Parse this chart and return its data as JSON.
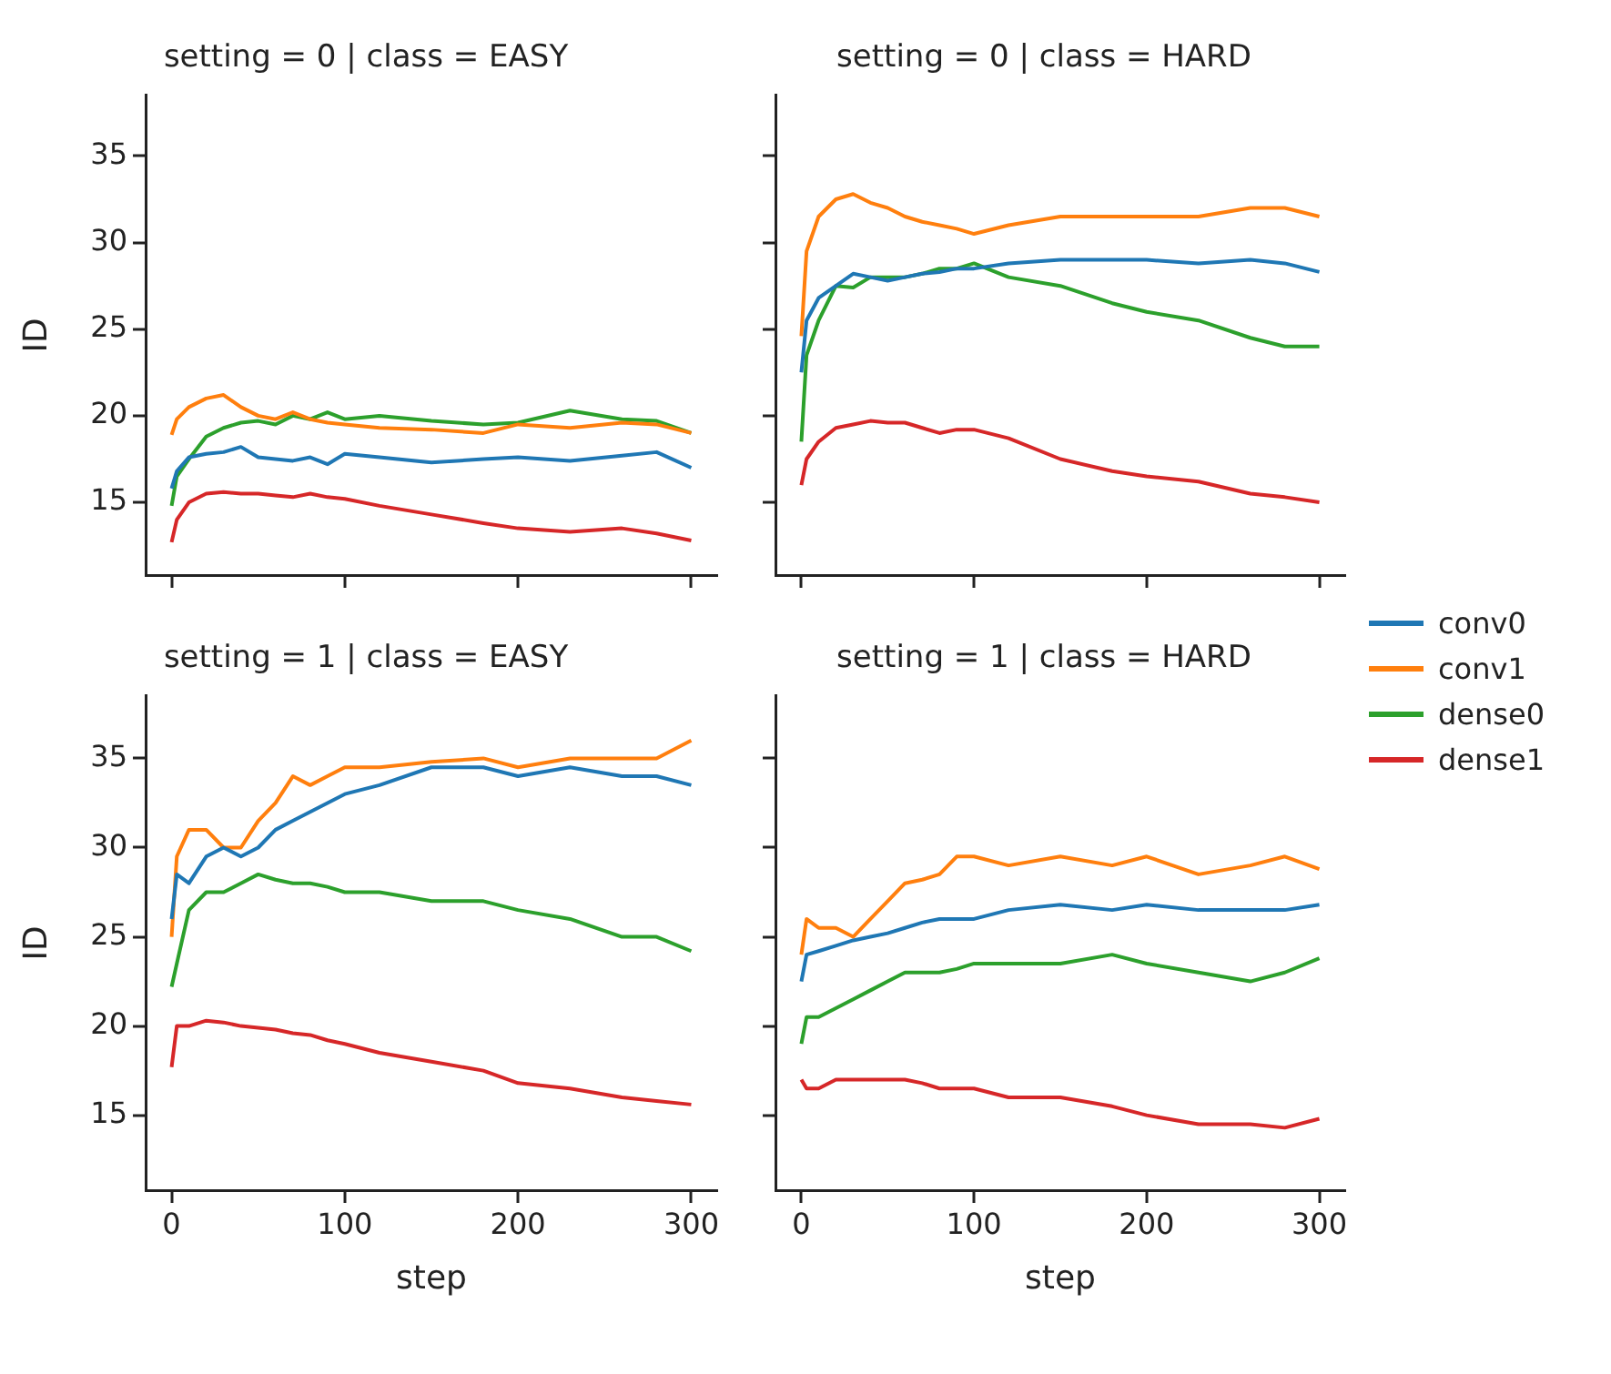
{
  "chart_data": [
    {
      "type": "line",
      "title": "setting = 0 | class = EASY",
      "ylabel": "ID",
      "x": [
        0,
        3,
        10,
        20,
        30,
        40,
        50,
        60,
        70,
        80,
        90,
        100,
        120,
        150,
        180,
        200,
        230,
        260,
        280,
        300
      ],
      "xlim": [
        -15,
        315
      ],
      "xticks": [
        0,
        100,
        200,
        300
      ],
      "ylim": [
        10.8,
        38.5
      ],
      "yticks": [
        15,
        20,
        25,
        30,
        35
      ],
      "tick_labels": "y",
      "grid": false,
      "legend": "right",
      "series": [
        {
          "name": "conv0",
          "color": "#1f77b4",
          "values": [
            15.8,
            16.8,
            17.6,
            17.8,
            17.9,
            18.2,
            17.6,
            17.5,
            17.4,
            17.6,
            17.2,
            17.8,
            17.6,
            17.3,
            17.5,
            17.6,
            17.4,
            17.7,
            17.9,
            17.0
          ]
        },
        {
          "name": "conv1",
          "color": "#ff7f0e",
          "values": [
            18.9,
            19.8,
            20.5,
            21.0,
            21.2,
            20.5,
            20.0,
            19.8,
            20.2,
            19.8,
            19.6,
            19.5,
            19.3,
            19.2,
            19.0,
            19.5,
            19.3,
            19.6,
            19.5,
            19.0
          ]
        },
        {
          "name": "dense0",
          "color": "#2ca02c",
          "values": [
            14.8,
            16.5,
            17.5,
            18.8,
            19.3,
            19.6,
            19.7,
            19.5,
            20.0,
            19.8,
            20.2,
            19.8,
            20.0,
            19.7,
            19.5,
            19.6,
            20.3,
            19.8,
            19.7,
            19.0
          ]
        },
        {
          "name": "dense1",
          "color": "#d62728",
          "values": [
            12.7,
            14.0,
            15.0,
            15.5,
            15.6,
            15.5,
            15.5,
            15.4,
            15.3,
            15.5,
            15.3,
            15.2,
            14.8,
            14.3,
            13.8,
            13.5,
            13.3,
            13.5,
            13.2,
            12.8
          ]
        }
      ]
    },
    {
      "type": "line",
      "title": "setting = 0 | class = HARD",
      "x": [
        0,
        3,
        10,
        20,
        30,
        40,
        50,
        60,
        70,
        80,
        90,
        100,
        120,
        150,
        180,
        200,
        230,
        260,
        280,
        300
      ],
      "xlim": [
        -15,
        315
      ],
      "xticks": [
        0,
        100,
        200,
        300
      ],
      "ylim": [
        10.8,
        38.5
      ],
      "yticks": [
        15,
        20,
        25,
        30,
        35
      ],
      "tick_labels": false,
      "grid": false,
      "series": [
        {
          "name": "conv0",
          "color": "#1f77b4",
          "values": [
            22.5,
            25.5,
            26.8,
            27.5,
            28.2,
            28.0,
            27.8,
            28.0,
            28.2,
            28.3,
            28.5,
            28.5,
            28.8,
            29.0,
            29.0,
            29.0,
            28.8,
            29.0,
            28.8,
            28.3
          ]
        },
        {
          "name": "conv1",
          "color": "#ff7f0e",
          "values": [
            24.6,
            29.5,
            31.5,
            32.5,
            32.8,
            32.3,
            32.0,
            31.5,
            31.2,
            31.0,
            30.8,
            30.5,
            31.0,
            31.5,
            31.5,
            31.5,
            31.5,
            32.0,
            32.0,
            31.5
          ]
        },
        {
          "name": "dense0",
          "color": "#2ca02c",
          "values": [
            18.5,
            23.5,
            25.5,
            27.5,
            27.4,
            28.0,
            28.0,
            28.0,
            28.2,
            28.5,
            28.5,
            28.8,
            28.0,
            27.5,
            26.5,
            26.0,
            25.5,
            24.5,
            24.0,
            24.0
          ]
        },
        {
          "name": "dense1",
          "color": "#d62728",
          "values": [
            16.0,
            17.5,
            18.5,
            19.3,
            19.5,
            19.7,
            19.6,
            19.6,
            19.3,
            19.0,
            19.2,
            19.2,
            18.7,
            17.5,
            16.8,
            16.5,
            16.2,
            15.5,
            15.3,
            15.0
          ]
        }
      ]
    },
    {
      "type": "line",
      "title": "setting = 1 | class = EASY",
      "xlabel": "step",
      "ylabel": "ID",
      "x": [
        0,
        3,
        10,
        20,
        30,
        40,
        50,
        60,
        70,
        80,
        90,
        100,
        120,
        150,
        180,
        200,
        230,
        260,
        280,
        300
      ],
      "xlim": [
        -15,
        315
      ],
      "xticks": [
        0,
        100,
        200,
        300
      ],
      "ylim": [
        10.8,
        38.5
      ],
      "yticks": [
        15,
        20,
        25,
        30,
        35
      ],
      "grid": false,
      "series": [
        {
          "name": "conv0",
          "color": "#1f77b4",
          "values": [
            26.0,
            28.5,
            28.0,
            29.5,
            30.0,
            29.5,
            30.0,
            31.0,
            31.5,
            32.0,
            32.5,
            33.0,
            33.5,
            34.5,
            34.5,
            34.0,
            34.5,
            34.0,
            34.0,
            33.5
          ]
        },
        {
          "name": "conv1",
          "color": "#ff7f0e",
          "values": [
            25.0,
            29.5,
            31.0,
            31.0,
            30.0,
            30.0,
            31.5,
            32.5,
            34.0,
            33.5,
            34.0,
            34.5,
            34.5,
            34.8,
            35.0,
            34.5,
            35.0,
            35.0,
            35.0,
            36.0
          ]
        },
        {
          "name": "dense0",
          "color": "#2ca02c",
          "values": [
            22.2,
            23.5,
            26.5,
            27.5,
            27.5,
            28.0,
            28.5,
            28.2,
            28.0,
            28.0,
            27.8,
            27.5,
            27.5,
            27.0,
            27.0,
            26.5,
            26.0,
            25.0,
            25.0,
            24.2
          ]
        },
        {
          "name": "dense1",
          "color": "#d62728",
          "values": [
            17.7,
            20.0,
            20.0,
            20.3,
            20.2,
            20.0,
            19.9,
            19.8,
            19.6,
            19.5,
            19.2,
            19.0,
            18.5,
            18.0,
            17.5,
            16.8,
            16.5,
            16.0,
            15.8,
            15.6
          ]
        }
      ]
    },
    {
      "type": "line",
      "title": "setting = 1 | class = HARD",
      "xlabel": "step",
      "x": [
        0,
        3,
        10,
        20,
        30,
        40,
        50,
        60,
        70,
        80,
        90,
        100,
        120,
        150,
        180,
        200,
        230,
        260,
        280,
        300
      ],
      "xlim": [
        -15,
        315
      ],
      "xticks": [
        0,
        100,
        200,
        300
      ],
      "ylim": [
        10.8,
        38.5
      ],
      "yticks": [
        15,
        20,
        25,
        30,
        35
      ],
      "tick_labels": "x",
      "grid": false,
      "series": [
        {
          "name": "conv0",
          "color": "#1f77b4",
          "values": [
            22.5,
            24.0,
            24.2,
            24.5,
            24.8,
            25.0,
            25.2,
            25.5,
            25.8,
            26.0,
            26.0,
            26.0,
            26.5,
            26.8,
            26.5,
            26.8,
            26.5,
            26.5,
            26.5,
            26.8
          ]
        },
        {
          "name": "conv1",
          "color": "#ff7f0e",
          "values": [
            24.0,
            26.0,
            25.5,
            25.5,
            25.0,
            26.0,
            27.0,
            28.0,
            28.2,
            28.5,
            29.5,
            29.5,
            29.0,
            29.5,
            29.0,
            29.5,
            28.5,
            29.0,
            29.5,
            28.8
          ]
        },
        {
          "name": "dense0",
          "color": "#2ca02c",
          "values": [
            19.0,
            20.5,
            20.5,
            21.0,
            21.5,
            22.0,
            22.5,
            23.0,
            23.0,
            23.0,
            23.2,
            23.5,
            23.5,
            23.5,
            24.0,
            23.5,
            23.0,
            22.5,
            23.0,
            23.8
          ]
        },
        {
          "name": "dense1",
          "color": "#d62728",
          "values": [
            17.0,
            16.5,
            16.5,
            17.0,
            17.0,
            17.0,
            17.0,
            17.0,
            16.8,
            16.5,
            16.5,
            16.5,
            16.0,
            16.0,
            15.5,
            15.0,
            14.5,
            14.5,
            14.3,
            14.8
          ]
        }
      ]
    }
  ]
}
